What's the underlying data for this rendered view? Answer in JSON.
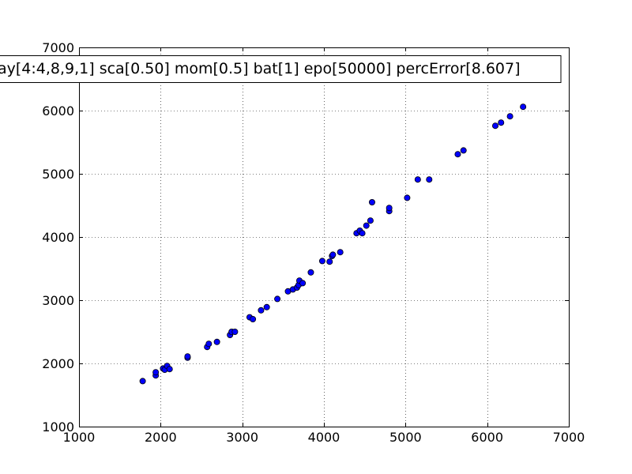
{
  "chart_data": {
    "type": "scatter",
    "title": "",
    "xlabel": "",
    "ylabel": "",
    "xlim": [
      1000,
      7000
    ],
    "ylim": [
      1000,
      7000
    ],
    "x_ticks": [
      "1000",
      "2000",
      "3000",
      "4000",
      "5000",
      "6000",
      "7000"
    ],
    "y_ticks": [
      "1000",
      "2000",
      "3000",
      "4000",
      "5000",
      "6000",
      "7000"
    ],
    "grid": true,
    "legend_position": "top",
    "legend_text": "ay[4:4,8,9,1] sca[0.50] mom[0.5] bat[1] epo[50000] percError[8.607]",
    "marker_color": "#0000ff",
    "series": [
      {
        "points": [
          [
            1780,
            1720
          ],
          [
            1940,
            1810
          ],
          [
            1940,
            1860
          ],
          [
            2030,
            1920
          ],
          [
            2050,
            1900
          ],
          [
            2080,
            1960
          ],
          [
            2110,
            1910
          ],
          [
            2330,
            2090
          ],
          [
            2330,
            2110
          ],
          [
            2570,
            2260
          ],
          [
            2590,
            2310
          ],
          [
            2690,
            2340
          ],
          [
            2850,
            2450
          ],
          [
            2870,
            2500
          ],
          [
            2910,
            2500
          ],
          [
            3090,
            2730
          ],
          [
            3130,
            2700
          ],
          [
            3230,
            2840
          ],
          [
            3300,
            2890
          ],
          [
            3430,
            3020
          ],
          [
            3560,
            3140
          ],
          [
            3620,
            3170
          ],
          [
            3670,
            3200
          ],
          [
            3690,
            3240
          ],
          [
            3700,
            3310
          ],
          [
            3740,
            3270
          ],
          [
            3840,
            3440
          ],
          [
            3980,
            3620
          ],
          [
            4070,
            3610
          ],
          [
            4100,
            3700
          ],
          [
            4110,
            3720
          ],
          [
            4200,
            3760
          ],
          [
            4400,
            4060
          ],
          [
            4440,
            4100
          ],
          [
            4470,
            4060
          ],
          [
            4520,
            4180
          ],
          [
            4570,
            4260
          ],
          [
            4590,
            4550
          ],
          [
            4800,
            4410
          ],
          [
            4800,
            4460
          ],
          [
            5020,
            4620
          ],
          [
            5150,
            4910
          ],
          [
            5290,
            4910
          ],
          [
            5640,
            5310
          ],
          [
            5710,
            5370
          ],
          [
            6100,
            5760
          ],
          [
            6170,
            5810
          ],
          [
            6280,
            5910
          ],
          [
            6440,
            6060
          ]
        ]
      }
    ]
  }
}
